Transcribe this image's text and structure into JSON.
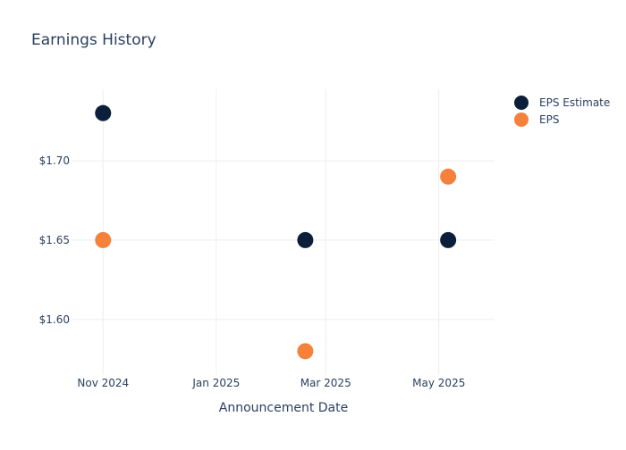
{
  "colors": {
    "background": "#ffffff",
    "grid": "#eeeeee",
    "text": "#2a3f5f",
    "title": "#2a3f5f",
    "eps_estimate": "#0b1f3a",
    "eps": "#f5813b"
  },
  "chart_data": {
    "type": "scatter",
    "title": "Earnings History",
    "xlabel": "Announcement Date",
    "ylabel": "",
    "x_axis": {
      "type": "date",
      "range": [
        "2024-10-15",
        "2025-05-31"
      ],
      "ticks": [
        {
          "date": "2024-11-01",
          "label": "Nov 2024"
        },
        {
          "date": "2025-01-01",
          "label": "Jan 2025"
        },
        {
          "date": "2025-03-01",
          "label": "Mar 2025"
        },
        {
          "date": "2025-05-01",
          "label": "May 2025"
        }
      ]
    },
    "y_axis": {
      "range": [
        1.565,
        1.745
      ],
      "ticks": [
        {
          "value": 1.6,
          "label": "$1.60"
        },
        {
          "value": 1.65,
          "label": "$1.65"
        },
        {
          "value": 1.7,
          "label": "$1.70"
        }
      ]
    },
    "grid": true,
    "legend_position": "top-right",
    "series": [
      {
        "name": "EPS Estimate",
        "color": "#0b1f3a",
        "points": [
          {
            "x": "2024-11-01",
            "y": 1.73
          },
          {
            "x": "2025-02-18",
            "y": 1.65
          },
          {
            "x": "2025-05-06",
            "y": 1.65
          }
        ]
      },
      {
        "name": "EPS",
        "color": "#f5813b",
        "points": [
          {
            "x": "2024-11-01",
            "y": 1.65
          },
          {
            "x": "2025-02-18",
            "y": 1.58
          },
          {
            "x": "2025-05-06",
            "y": 1.69
          }
        ]
      }
    ]
  }
}
